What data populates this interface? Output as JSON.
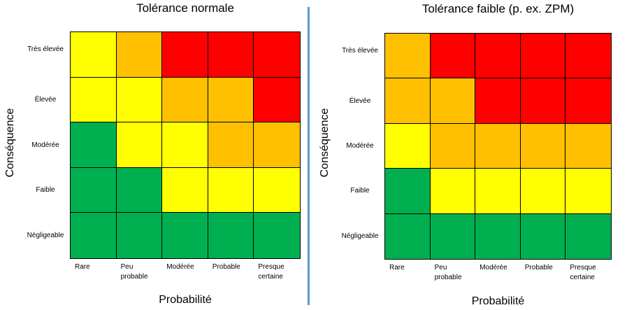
{
  "palette": {
    "green": "#00b050",
    "yellow": "#ffff00",
    "orange": "#ffc000",
    "red": "#ff0000"
  },
  "ylabel": "Conséquence",
  "xlabel": "Probabilité",
  "chart_data": [
    {
      "type": "heatmap",
      "title": "Tolérance normale",
      "xlabel": "Probabilité",
      "ylabel": "Conséquence",
      "columns": [
        "Rare",
        "Peu probable",
        "Modérée",
        "Probable",
        "Presque certaine"
      ],
      "rows": [
        "Très élevée",
        "Élevée",
        "Modérée",
        "Faible",
        "Négligeable"
      ],
      "cells": [
        [
          "yellow",
          "orange",
          "red",
          "red",
          "red"
        ],
        [
          "yellow",
          "yellow",
          "orange",
          "orange",
          "red"
        ],
        [
          "green",
          "yellow",
          "yellow",
          "orange",
          "orange"
        ],
        [
          "green",
          "green",
          "yellow",
          "yellow",
          "yellow"
        ],
        [
          "green",
          "green",
          "green",
          "green",
          "green"
        ]
      ]
    },
    {
      "type": "heatmap",
      "title": "Tolérance faible (p. ex. ZPM)",
      "xlabel": "Probabilité",
      "ylabel": "Conséquence",
      "columns": [
        "Rare",
        "Peu probable",
        "Modérée",
        "Probable",
        "Presque certaine"
      ],
      "rows": [
        "Très élevée",
        "Élevée",
        "Modérée",
        "Faible",
        "Négligeable"
      ],
      "cells": [
        [
          "orange",
          "red",
          "red",
          "red",
          "red"
        ],
        [
          "orange",
          "orange",
          "red",
          "red",
          "red"
        ],
        [
          "yellow",
          "orange",
          "orange",
          "orange",
          "orange"
        ],
        [
          "green",
          "yellow",
          "yellow",
          "yellow",
          "yellow"
        ],
        [
          "green",
          "green",
          "green",
          "green",
          "green"
        ]
      ]
    }
  ]
}
